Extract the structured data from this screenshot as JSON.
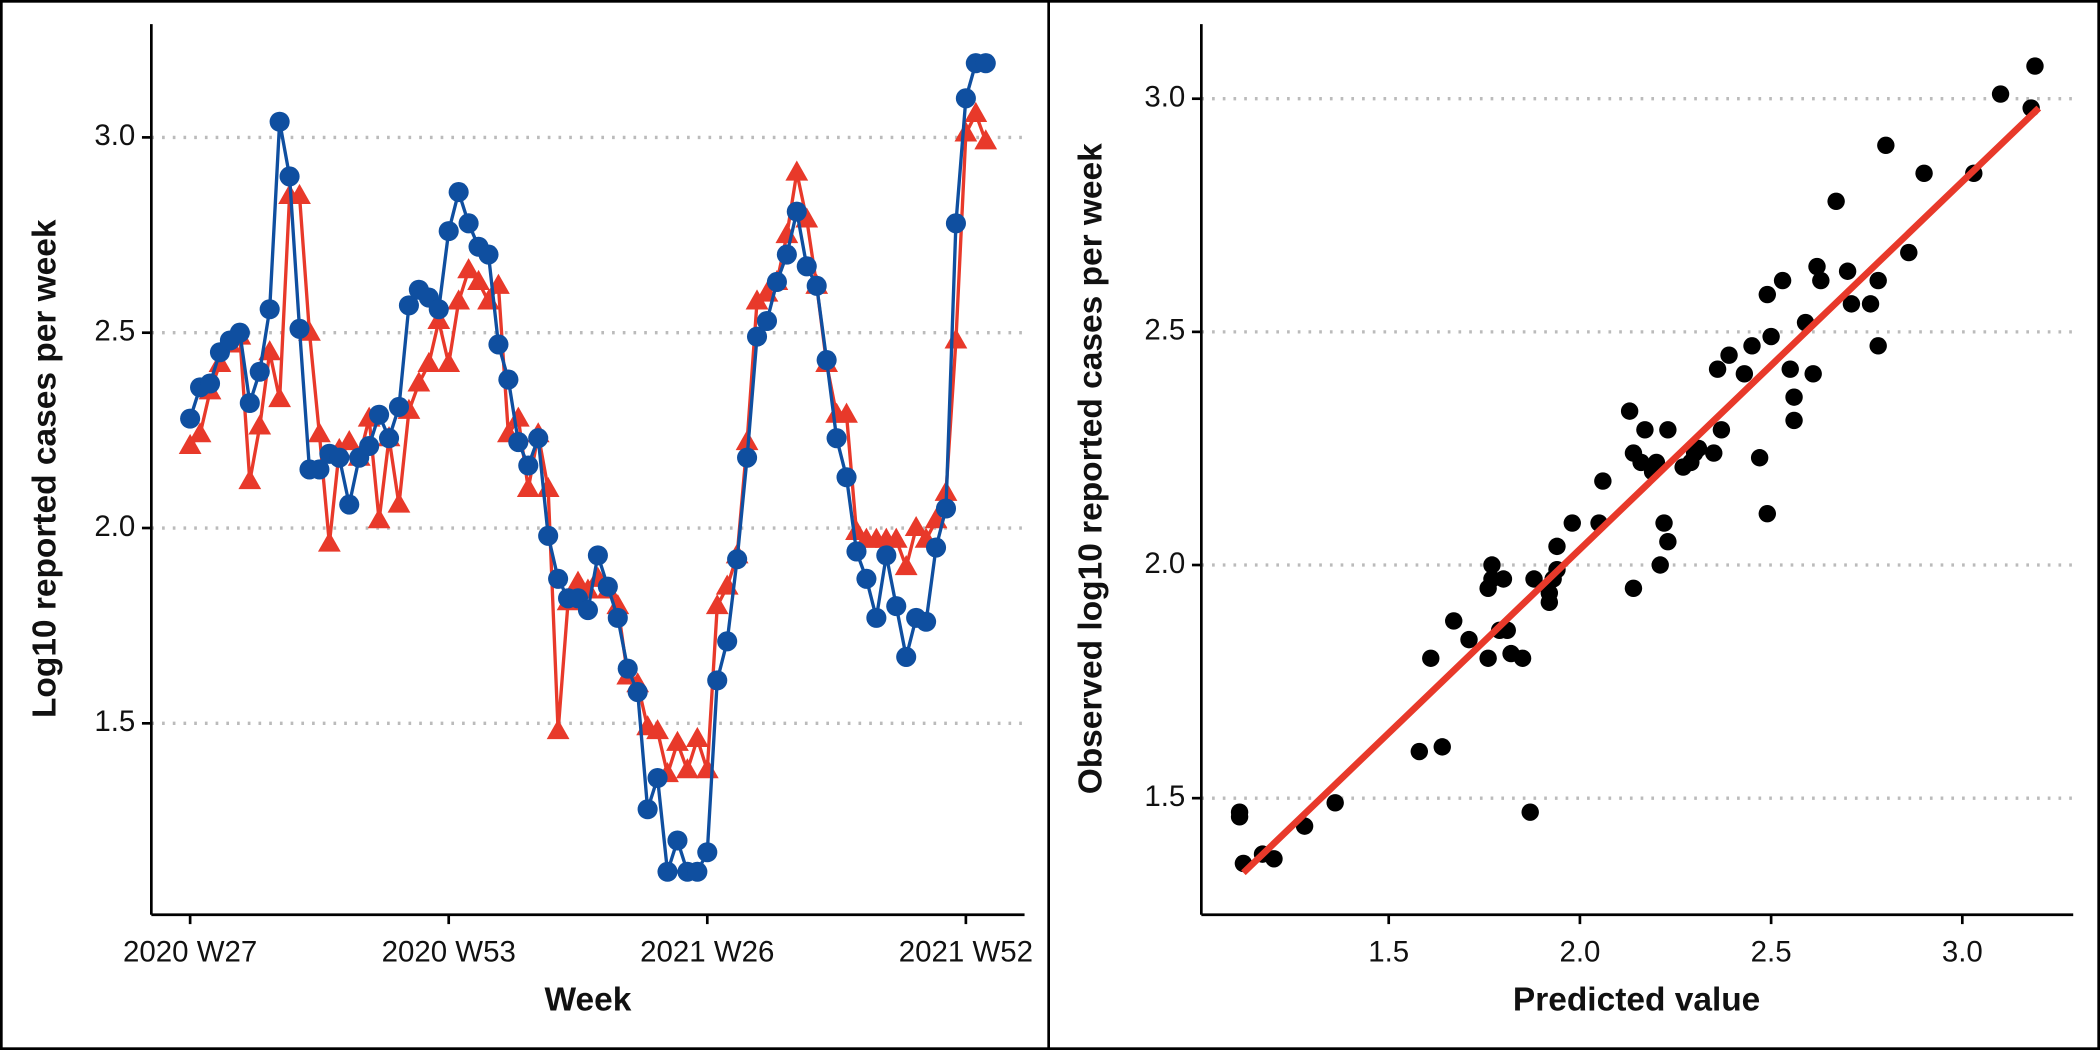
{
  "chart_data": [
    {
      "type": "line",
      "y_label": "Log10 reported cases per week",
      "x_label": "Week",
      "categories": [
        "2020 W27",
        null,
        null,
        null,
        null,
        null,
        null,
        null,
        null,
        null,
        null,
        null,
        null,
        null,
        null,
        null,
        null,
        null,
        null,
        null,
        null,
        null,
        null,
        null,
        null,
        null,
        "2020 W53",
        null,
        null,
        null,
        null,
        null,
        null,
        null,
        null,
        null,
        null,
        null,
        null,
        null,
        null,
        null,
        null,
        null,
        null,
        null,
        null,
        null,
        null,
        null,
        null,
        null,
        "2021 W26",
        null,
        null,
        null,
        null,
        null,
        null,
        null,
        null,
        null,
        null,
        null,
        null,
        null,
        null,
        null,
        null,
        null,
        null,
        null,
        null,
        null,
        null,
        null,
        null,
        null,
        "2021 W52",
        null,
        null
      ],
      "series": [
        {
          "color": "#0f4fa0",
          "marker": "circle",
          "values": [
            2.28,
            2.36,
            2.37,
            2.45,
            2.48,
            2.5,
            2.32,
            2.4,
            2.56,
            3.04,
            2.9,
            2.51,
            2.15,
            2.15,
            2.19,
            2.18,
            2.06,
            2.18,
            2.21,
            2.29,
            2.23,
            2.31,
            2.57,
            2.61,
            2.59,
            2.56,
            2.76,
            2.86,
            2.78,
            2.72,
            2.7,
            2.47,
            2.38,
            2.22,
            2.16,
            2.23,
            1.98,
            1.87,
            1.82,
            1.82,
            1.79,
            1.93,
            1.85,
            1.77,
            1.64,
            1.58,
            1.28,
            1.36,
            1.12,
            1.2,
            1.12,
            1.12,
            1.17,
            1.61,
            1.71,
            1.92,
            2.18,
            2.49,
            2.53,
            2.63,
            2.7,
            2.81,
            2.67,
            2.62,
            2.43,
            2.23,
            2.13,
            1.94,
            1.87,
            1.77,
            1.93,
            1.8,
            1.67,
            1.77,
            1.76,
            1.95,
            2.05,
            2.78,
            3.1,
            3.19,
            3.19
          ]
        },
        {
          "color": "#e8392a",
          "marker": "triangle",
          "values": [
            2.21,
            2.24,
            2.35,
            2.42,
            2.47,
            2.49,
            2.12,
            2.26,
            2.45,
            2.33,
            2.85,
            2.85,
            2.5,
            2.24,
            1.96,
            2.2,
            2.22,
            2.18,
            2.28,
            2.02,
            2.23,
            2.06,
            2.3,
            2.37,
            2.42,
            2.53,
            2.42,
            2.58,
            2.66,
            2.63,
            2.58,
            2.62,
            2.24,
            2.28,
            2.1,
            2.24,
            2.1,
            1.48,
            1.81,
            1.86,
            1.84,
            1.87,
            1.84,
            1.8,
            1.62,
            1.6,
            1.49,
            1.48,
            1.37,
            1.45,
            1.38,
            1.46,
            1.38,
            1.8,
            1.85,
            1.93,
            2.22,
            2.58,
            2.6,
            2.63,
            2.75,
            2.91,
            2.79,
            2.62,
            2.42,
            2.29,
            2.29,
            1.99,
            1.97,
            1.97,
            1.97,
            1.97,
            1.9,
            2.0,
            1.97,
            2.02,
            2.09,
            2.48,
            3.01,
            3.06,
            2.99
          ]
        }
      ],
      "ylim": [
        1.01,
        3.29
      ],
      "yticks": [
        1.5,
        {
          "value": 2.0,
          "label": "2.0"
        },
        2.5,
        {
          "value": 3.0,
          "label": "3.0"
        }
      ],
      "grid": true
    },
    {
      "type": "scatter",
      "x_label": "Predicted value",
      "y_label": "Observed log10 reported cases per week",
      "color": "#000000",
      "x": [
        1.11,
        1.11,
        1.12,
        1.17,
        1.2,
        1.28,
        1.36,
        1.58,
        1.64,
        1.61,
        1.67,
        1.71,
        1.76,
        1.76,
        1.77,
        1.77,
        1.8,
        1.79,
        1.81,
        1.82,
        1.85,
        1.87,
        1.88,
        1.92,
        1.92,
        1.93,
        1.94,
        1.94,
        1.98,
        2.05,
        2.06,
        2.13,
        2.14,
        2.14,
        2.16,
        2.17,
        2.19,
        2.2,
        2.23,
        2.22,
        2.23,
        2.21,
        2.27,
        2.29,
        2.3,
        2.31,
        2.35,
        2.37,
        2.36,
        2.39,
        2.43,
        2.45,
        2.47,
        2.49,
        2.5,
        2.49,
        2.53,
        2.55,
        2.56,
        2.56,
        2.59,
        2.61,
        2.62,
        2.63,
        2.67,
        2.7,
        2.71,
        2.76,
        2.78,
        2.78,
        2.8,
        2.86,
        2.9,
        3.03,
        3.1,
        3.19,
        3.18
      ],
      "y": [
        1.46,
        1.47,
        1.36,
        1.38,
        1.37,
        1.44,
        1.49,
        1.6,
        1.61,
        1.8,
        1.88,
        1.84,
        1.8,
        1.95,
        1.97,
        2.0,
        1.97,
        1.86,
        1.86,
        1.81,
        1.8,
        1.47,
        1.97,
        1.92,
        1.94,
        1.97,
        1.99,
        2.04,
        2.09,
        2.09,
        2.18,
        2.33,
        1.95,
        2.24,
        2.22,
        2.29,
        2.2,
        2.22,
        2.29,
        2.09,
        2.05,
        2.0,
        2.21,
        2.22,
        2.24,
        2.25,
        2.24,
        2.29,
        2.42,
        2.45,
        2.41,
        2.47,
        2.23,
        2.58,
        2.49,
        2.11,
        2.61,
        2.42,
        2.36,
        2.31,
        2.52,
        2.41,
        2.64,
        2.61,
        2.78,
        2.63,
        2.56,
        2.56,
        2.61,
        2.47,
        2.9,
        2.67,
        2.84,
        2.84,
        3.01,
        3.07,
        2.98
      ],
      "fit": {
        "color": "#e8392a",
        "x": [
          1.12,
          3.2
        ],
        "y": [
          1.34,
          2.98
        ]
      },
      "xlim": [
        1.01,
        3.29
      ],
      "xticks": [
        1.5,
        {
          "value": 2.0,
          "label": "2.0"
        },
        2.5,
        {
          "value": 3.0,
          "label": "3.0"
        }
      ],
      "ylim": [
        1.25,
        3.16
      ],
      "yticks": [
        1.5,
        {
          "value": 2.0,
          "label": "2.0"
        },
        2.5,
        {
          "value": 3.0,
          "label": "3.0"
        }
      ],
      "grid": true
    }
  ]
}
